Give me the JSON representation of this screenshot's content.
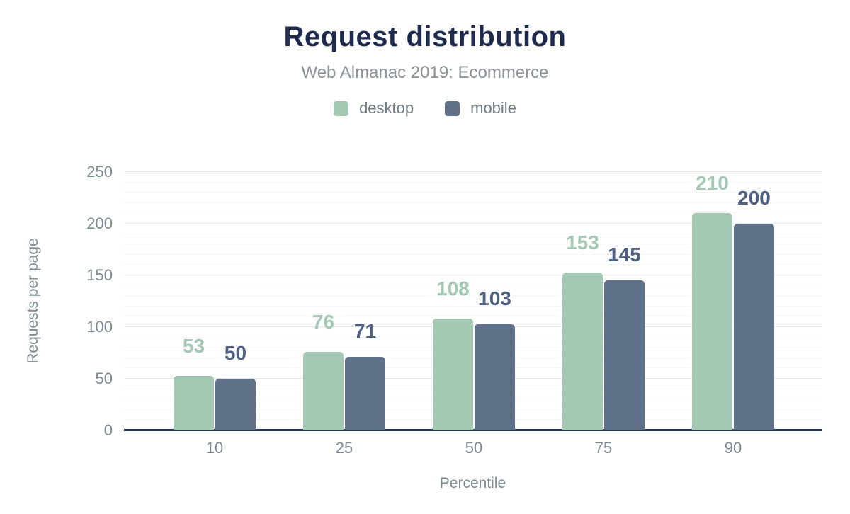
{
  "chart_data": {
    "type": "bar",
    "title": "Request distribution",
    "subtitle": "Web Almanac 2019: Ecommerce",
    "xlabel": "Percentile",
    "ylabel": "Requests per page",
    "categories": [
      "10",
      "25",
      "50",
      "75",
      "90"
    ],
    "series": [
      {
        "name": "desktop",
        "color": "#a5c8b5",
        "label_color": "#a5c8b5",
        "values": [
          53,
          76,
          108,
          153,
          210
        ]
      },
      {
        "name": "mobile",
        "color": "#5f7089",
        "label_color": "#4d6080",
        "values": [
          50,
          71,
          103,
          145,
          200
        ]
      }
    ],
    "y_axis": {
      "min": 0,
      "max": 250,
      "major_step": 50,
      "minor_step": 10,
      "ticks": [
        "0",
        "50",
        "100",
        "150",
        "200",
        "250"
      ]
    },
    "legend_position": "top",
    "grid": "major solid, minor dotted, horizontal only"
  },
  "colors": {
    "background": "#ffffff",
    "title_text": "#1f2b4e",
    "subtitle_text": "#8b9399",
    "axis_text": "#7d8a92",
    "baseline": "#26355a",
    "grid_major": "#e7e7e7",
    "grid_minor": "#ededed"
  }
}
